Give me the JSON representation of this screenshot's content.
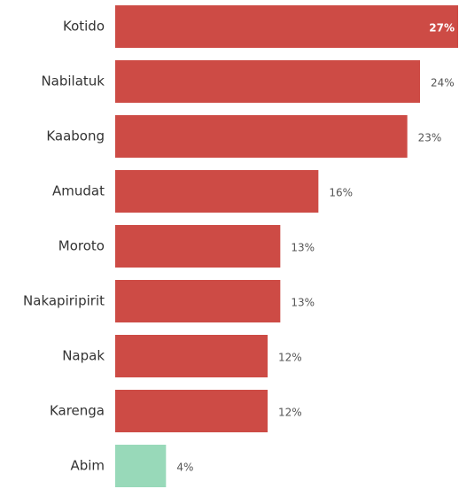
{
  "chart_data": {
    "type": "bar",
    "orientation": "horizontal",
    "categories": [
      "Kotido",
      "Nabilatuk",
      "Kaabong",
      "Amudat",
      "Moroto",
      "Nakapiripirit",
      "Napak",
      "Karenga",
      "Abim"
    ],
    "values": [
      27,
      24,
      23,
      16,
      13,
      13,
      12,
      12,
      4
    ],
    "value_labels": [
      "27%",
      "24%",
      "23%",
      "16%",
      "13%",
      "13%",
      "12%",
      "12%",
      "4%"
    ],
    "colors": [
      "#cd4b45",
      "#cd4b45",
      "#cd4b45",
      "#cd4b45",
      "#cd4b45",
      "#cd4b45",
      "#cd4b45",
      "#cd4b45",
      "#98d9b9"
    ]
  }
}
